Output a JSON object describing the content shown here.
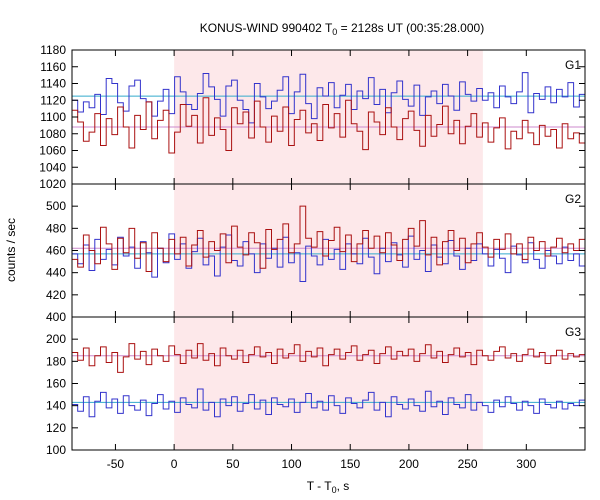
{
  "chart_data": {
    "type": "line",
    "title": {
      "prefix": "KONUS-WIND 990402 T",
      "subscript": "0",
      "suffix": " = 2128s UT (00:35:28.000)"
    },
    "xlabel": {
      "prefix": "T - T",
      "subscript": "0",
      "suffix": ", s"
    },
    "ylabel": "counts / sec",
    "xlim": [
      -87,
      350
    ],
    "x_ticks": [
      -50,
      0,
      50,
      100,
      150,
      200,
      250,
      300
    ],
    "shaded_interval": {
      "x": [
        0,
        263
      ],
      "color": "#fde8ea"
    },
    "panels": [
      {
        "label": "G1",
        "ylim": [
          1020,
          1180
        ],
        "y_ticks": [
          1020,
          1040,
          1060,
          1080,
          1100,
          1120,
          1140,
          1160,
          1180
        ],
        "series": [
          {
            "values": [
              1120,
              1106,
              1118,
              1111,
              1127,
              1103,
              1146,
              1140,
              1117,
              1107,
              1137,
              1144,
              1122,
              1118,
              1101,
              1119,
              1133,
              1104,
              1148,
              1130,
              1115,
              1109,
              1128,
              1152,
              1136,
              1121,
              1101,
              1137,
              1144,
              1120,
              1109,
              1093,
              1140,
              1124,
              1110,
              1119,
              1132,
              1148,
              1104,
              1130,
              1151,
              1116,
              1098,
              1135,
              1125,
              1141,
              1111,
              1126,
              1139,
              1109,
              1131,
              1122,
              1147,
              1115,
              1133,
              1105,
              1129,
              1143,
              1121,
              1113,
              1138,
              1102,
              1124,
              1131,
              1116,
              1139,
              1125,
              1108,
              1142,
              1127,
              1119,
              1134,
              1120,
              1129,
              1111,
              1137,
              1124,
              1116,
              1130,
              1153,
              1105,
              1128,
              1121,
              1136,
              1117,
              1133,
              1124,
              1141,
              1112,
              1127
            ],
            "color": "#3333cc"
          },
          {
            "values": [
              1108,
              1094,
              1071,
              1082,
              1104,
              1066,
              1098,
              1079,
              1112,
              1088,
              1063,
              1102,
              1085,
              1118,
              1074,
              1096,
              1108,
              1057,
              1082,
              1115,
              1089,
              1102,
              1069,
              1123,
              1078,
              1099,
              1085,
              1060,
              1111,
              1092,
              1106,
              1075,
              1119,
              1088,
              1070,
              1101,
              1083,
              1112,
              1066,
              1097,
              1108,
              1081,
              1092,
              1072,
              1115,
              1087,
              1104,
              1076,
              1120,
              1092,
              1083,
              1061,
              1106,
              1094,
              1079,
              1111,
              1088,
              1073,
              1098,
              1107,
              1084,
              1065,
              1102,
              1077,
              1091,
              1113,
              1080,
              1096,
              1068,
              1089,
              1104,
              1076,
              1093,
              1070,
              1087,
              1099,
              1062,
              1083,
              1074,
              1096,
              1081,
              1067,
              1090,
              1077,
              1085,
              1063,
              1092,
              1074,
              1081,
              1069
            ],
            "color": "#aa1111"
          }
        ],
        "reference_lines": [
          {
            "y": 1125,
            "color": "#33aacc"
          },
          {
            "y": 1088,
            "color": "#cc88cc"
          }
        ]
      },
      {
        "label": "G2",
        "ylim": [
          400,
          520
        ],
        "y_ticks": [
          400,
          420,
          440,
          460,
          480,
          500
        ],
        "series": [
          {
            "values": [
              457,
              448,
              465,
              442,
              470,
              452,
              461,
              447,
              472,
              455,
              463,
              444,
              468,
              458,
              436,
              462,
              449,
              475,
              452,
              466,
              444,
              459,
              471,
              447,
              455,
              437,
              463,
              474,
              451,
              446,
              468,
              457,
              440,
              466,
              453,
              462,
              445,
              472,
              449,
              458,
              432,
              464,
              455,
              447,
              470,
              452,
              461,
              443,
              466,
              457,
              448,
              471,
              454,
              439,
              462,
              450,
              467,
              456,
              445,
              473,
              452,
              460,
              441,
              465,
              454,
              448,
              469,
              455,
              443,
              462,
              451,
              466,
              457,
              446,
              461,
              453,
              440,
              464,
              456,
              449,
              467,
              452,
              444,
              460,
              455,
              448,
              463,
              451,
              457,
              446
            ],
            "color": "#3333cc"
          },
          {
            "values": [
              452,
              445,
              474,
              460,
              448,
              481,
              466,
              443,
              471,
              458,
              480,
              453,
              467,
              441,
              476,
              462,
              450,
              470,
              457,
              472,
              446,
              465,
              478,
              454,
              468,
              460,
              475,
              449,
              482,
              463,
              456,
              476,
              467,
              444,
              479,
              461,
              470,
              484,
              458,
              466,
              500,
              471,
              463,
              477,
              455,
              469,
              481,
              459,
              474,
              450,
              466,
              478,
              462,
              473,
              458,
              476,
              465,
              451,
              470,
              480,
              464,
              487,
              456,
              472,
              447,
              468,
              478,
              460,
              471,
              449,
              466,
              476,
              463,
              454,
              470,
              461,
              475,
              457,
              466,
              452,
              472,
              460,
              468,
              455,
              463,
              471,
              458,
              466,
              460,
              470
            ],
            "color": "#aa1111"
          }
        ],
        "reference_lines": [
          {
            "y": 457,
            "color": "#33aacc"
          },
          {
            "y": 462,
            "color": "#cc88cc"
          }
        ]
      },
      {
        "label": "G3",
        "ylim": [
          100,
          220
        ],
        "y_ticks": [
          100,
          120,
          140,
          160,
          180,
          200
        ],
        "series": [
          {
            "values": [
              188,
              181,
              192,
              176,
              185,
              193,
              179,
              188,
              170,
              184,
              196,
              182,
              189,
              177,
              191,
              185,
              180,
              194,
              186,
              178,
              190,
              183,
              196,
              181,
              187,
              176,
              192,
              185,
              182,
              190,
              179,
              186,
              193,
              184,
              188,
              178,
              191,
              183,
              187,
              195,
              180,
              189,
              184,
              192,
              176,
              186,
              191,
              182,
              188,
              194,
              181,
              186,
              190,
              178,
              187,
              193,
              182,
              189,
              185,
              191,
              180,
              187,
              195,
              183,
              189,
              179,
              186,
              192,
              184,
              188,
              177,
              190,
              185,
              181,
              189,
              193,
              183,
              187,
              180,
              186,
              191,
              184,
              188,
              178,
              185,
              190,
              182,
              187,
              184,
              186
            ],
            "color": "#aa1111"
          },
          {
            "values": [
              141,
              135,
              148,
              130,
              144,
              152,
              138,
              146,
              133,
              149,
              140,
              136,
              145,
              131,
              142,
              150,
              137,
              144,
              134,
              147,
              141,
              138,
              155,
              136,
              143,
              130,
              146,
              140,
              148,
              135,
              142,
              150,
              137,
              145,
              132,
              147,
              141,
              139,
              146,
              134,
              143,
              151,
              138,
              144,
              136,
              149,
              140,
              133,
              147,
              142,
              138,
              145,
              152,
              136,
              143,
              130,
              148,
              141,
              137,
              146,
              140,
              135,
              153,
              139,
              144,
              132,
              147,
              141,
              138,
              150,
              136,
              143,
              140,
              134,
              145,
              139,
              148,
              142,
              136,
              144,
              140,
              133,
              146,
              141,
              138,
              144,
              137,
              142,
              140,
              145
            ],
            "color": "#3333cc"
          }
        ],
        "reference_lines": [
          {
            "y": 185,
            "color": "#cc88cc"
          },
          {
            "y": 143,
            "color": "#33aacc"
          }
        ]
      }
    ]
  }
}
